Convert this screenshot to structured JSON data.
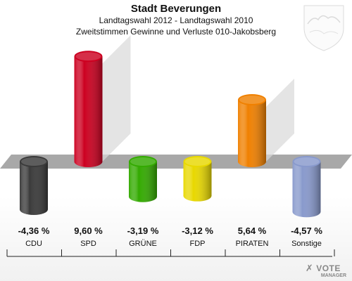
{
  "chart_data": {
    "type": "bar",
    "title": "Stadt Beverungen",
    "subtitle1": "Landtagswahl 2012 - Landtagswahl 2010",
    "subtitle2": "Zweitstimmen Gewinne und Verluste 010-Jakobsberg",
    "categories": [
      "CDU",
      "SPD",
      "GRÜNE",
      "FDP",
      "PIRATEN",
      "Sonstige"
    ],
    "values": [
      -4.36,
      9.6,
      -3.19,
      -3.12,
      5.64,
      -4.57
    ],
    "value_labels": [
      "-4,36 %",
      "9,60 %",
      "-3,19 %",
      "-3,12 %",
      "5,64 %",
      "-4,57 %"
    ],
    "colors": [
      "#3a3a3a",
      "#cc0020",
      "#33aa00",
      "#e8d800",
      "#f08000",
      "#8899cc"
    ],
    "baseline": 0
  },
  "watermark": {
    "line1": "VOTE",
    "line2": "MANAGER"
  },
  "icons": {
    "crest": "coat-of-arms-icon",
    "logo": "vote-manager-logo-icon"
  }
}
